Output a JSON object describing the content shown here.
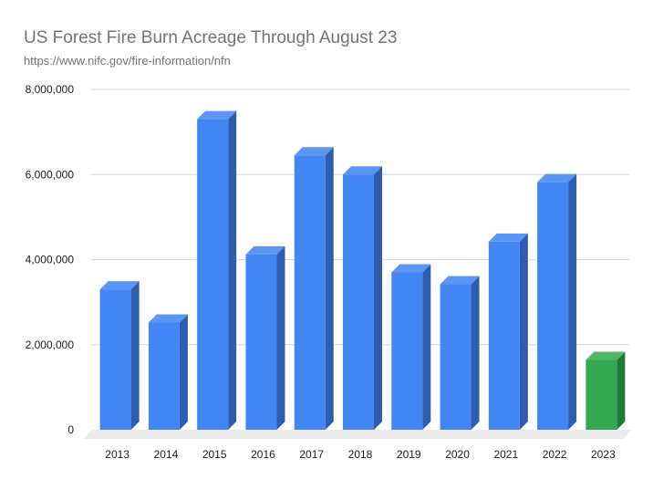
{
  "chart_data": {
    "type": "bar",
    "title": "US Forest Fire Burn Acreage Through August 23",
    "subtitle": "https://www.nifc.gov/fire-information/nfn",
    "xlabel": "",
    "ylabel": "",
    "categories": [
      "2013",
      "2014",
      "2015",
      "2016",
      "2017",
      "2018",
      "2019",
      "2020",
      "2021",
      "2022",
      "2023"
    ],
    "values": [
      3300000,
      2520000,
      7300000,
      4120000,
      6450000,
      6000000,
      3700000,
      3420000,
      4420000,
      5820000,
      1640000
    ],
    "ylim": [
      0,
      8000000
    ],
    "yticks": [
      0,
      2000000,
      4000000,
      6000000,
      8000000
    ],
    "ytick_labels": [
      "0",
      "2,000,000",
      "4,000,000",
      "6,000,000",
      "8,000,000"
    ],
    "grid": true,
    "legend": "none",
    "colors": {
      "default_bar": "#4285f4",
      "default_bar_top": "#5c96f5",
      "default_bar_side": "#2e5db0",
      "highlight_bar": "#34a853",
      "highlight_bar_top": "#4cb765",
      "highlight_bar_side": "#217a3a",
      "highlight_category": "2023"
    }
  }
}
